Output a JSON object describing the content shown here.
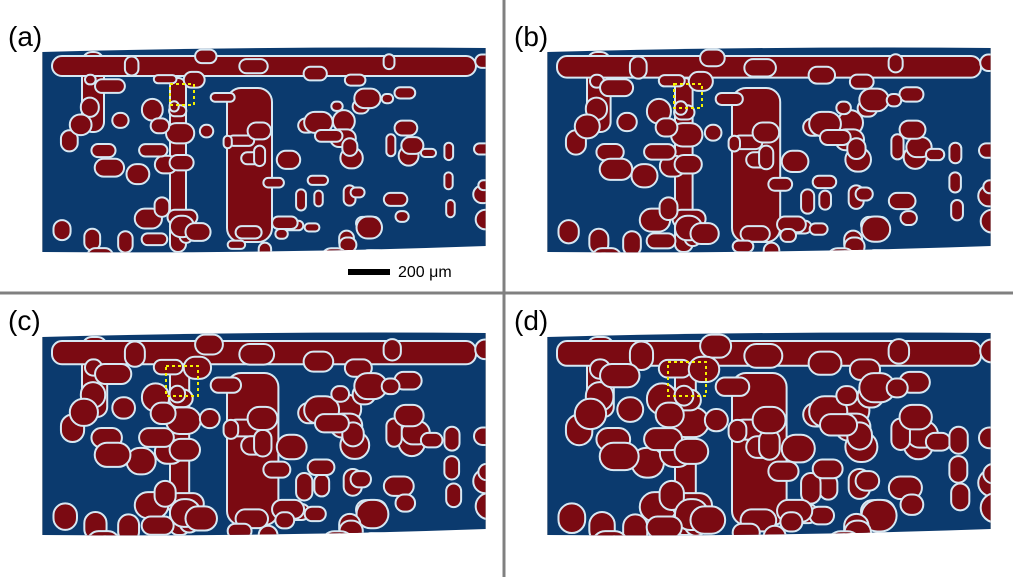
{
  "panels": [
    {
      "label": "(a)"
    },
    {
      "label": "(b)"
    },
    {
      "label": "(c)"
    },
    {
      "label": "(d)"
    }
  ],
  "scale_bar": {
    "label": "200 μm"
  }
}
